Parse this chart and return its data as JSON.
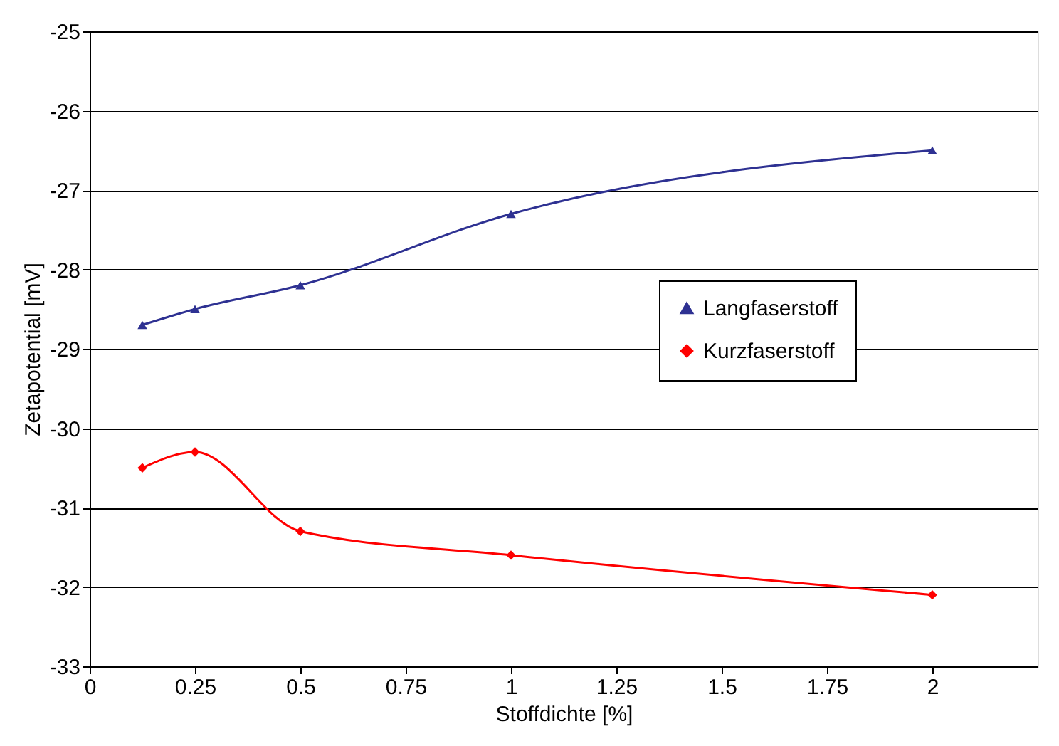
{
  "chart_data": {
    "type": "line",
    "xlabel": "Stoffdichte [%]",
    "ylabel": "Zetapotential [mV]",
    "x": [
      0.125,
      0.25,
      0.5,
      1,
      2
    ],
    "series": [
      {
        "name": "Langfaserstoff",
        "color": "#2e3192",
        "marker": "triangle",
        "values": [
          -28.7,
          -28.5,
          -28.2,
          -27.3,
          -26.5
        ]
      },
      {
        "name": "Kurzfaserstoff",
        "color": "#ff0000",
        "marker": "diamond",
        "values": [
          -30.5,
          -30.3,
          -31.3,
          -31.6,
          -32.1
        ]
      }
    ],
    "xlim": [
      0,
      2.25
    ],
    "xticks": [
      0,
      0.25,
      0.5,
      0.75,
      1,
      1.25,
      1.5,
      1.75,
      2
    ],
    "ylim": [
      -33,
      -25
    ],
    "yticks": [
      -33,
      -32,
      -31,
      -30,
      -29,
      -28,
      -27,
      -26,
      -25
    ],
    "grid": "y",
    "legend": "right",
    "line_style": "solid"
  }
}
